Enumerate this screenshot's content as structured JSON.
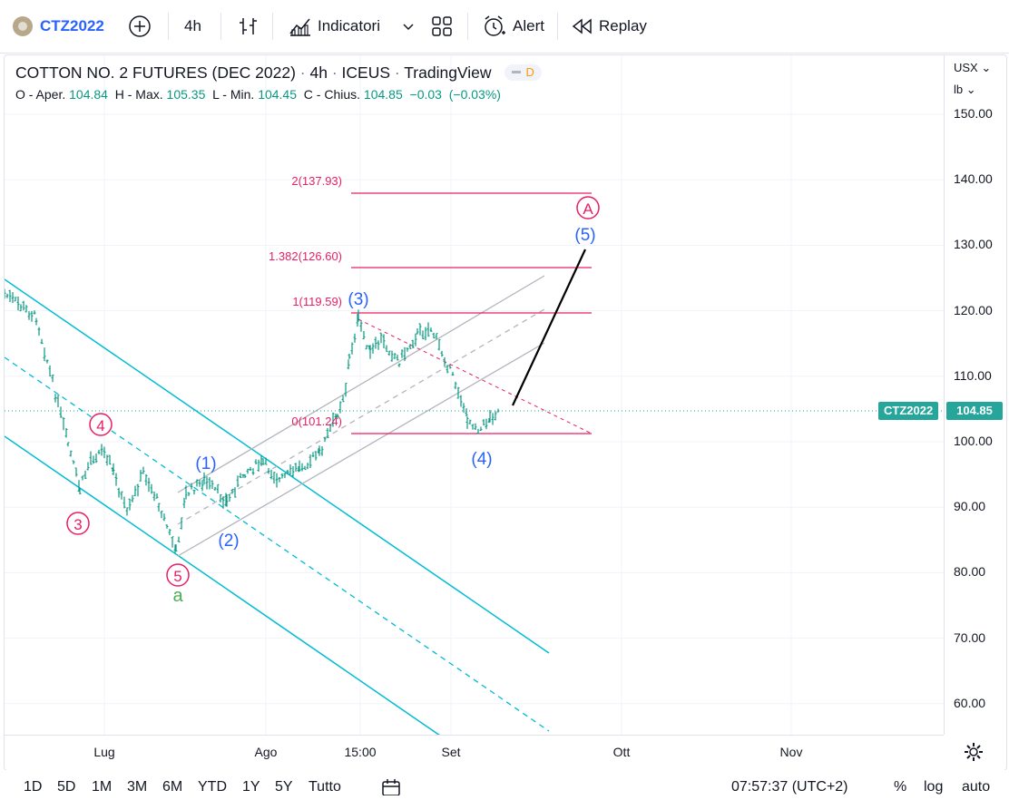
{
  "toolbar": {
    "symbol": "CTZ2022",
    "interval": "4h",
    "indicators_label": "Indicatori",
    "alert_label": "Alert",
    "replay_label": "Replay"
  },
  "legend": {
    "title": "COTTON NO. 2 FUTURES (DEC 2022)",
    "interval": "4h",
    "exchange": "ICEUS",
    "source": "TradingView",
    "badge": "D",
    "ohlc": {
      "o_label": "O - Aper.",
      "o": "104.84",
      "h_label": "H - Max.",
      "h": "105.35",
      "l_label": "L - Min.",
      "l": "104.45",
      "c_label": "C - Chius.",
      "c": "104.85",
      "change": "−0.03",
      "change_pct": "(−0.03%)"
    }
  },
  "price_axis": {
    "currency": "USX",
    "unit": "lb",
    "ticks": [
      "150.00",
      "140.00",
      "130.00",
      "120.00",
      "110.00",
      "100.00",
      "90.00",
      "80.00",
      "70.00",
      "60.00"
    ],
    "last_symbol": "CTZ2022",
    "last_price": "104.85"
  },
  "time_axis": {
    "ticks": [
      "Lug",
      "Ago",
      "15:00",
      "Set",
      "Ott",
      "Nov"
    ]
  },
  "fib_levels": [
    {
      "label": "2(137.93)"
    },
    {
      "label": "1.382(126.60)"
    },
    {
      "label": "1(119.59)"
    },
    {
      "label": "0(101.24)"
    }
  ],
  "wave_labels": {
    "w1": "(1)",
    "w2": "(2)",
    "w3": "(3)",
    "w4": "(4)",
    "w5": "(5)",
    "c3": "3",
    "c4": "4",
    "c5": "5",
    "cA": "A",
    "a": "a"
  },
  "bottom": {
    "ranges": [
      "1D",
      "5D",
      "1M",
      "3M",
      "6M",
      "YTD",
      "1Y",
      "5Y",
      "Tutto"
    ],
    "time": "07:57:37 (UTC+2)",
    "pct": "%",
    "log": "log",
    "auto": "auto"
  },
  "colors": {
    "accent": "#2962ff",
    "fib": "#e91e63",
    "channel": "#00bcd4",
    "wave_blue": "#2962ff",
    "wave_pink": "#e91e63",
    "wave_green": "#4caf50",
    "up": "#089981",
    "last_price_bg": "#26a69a"
  }
}
